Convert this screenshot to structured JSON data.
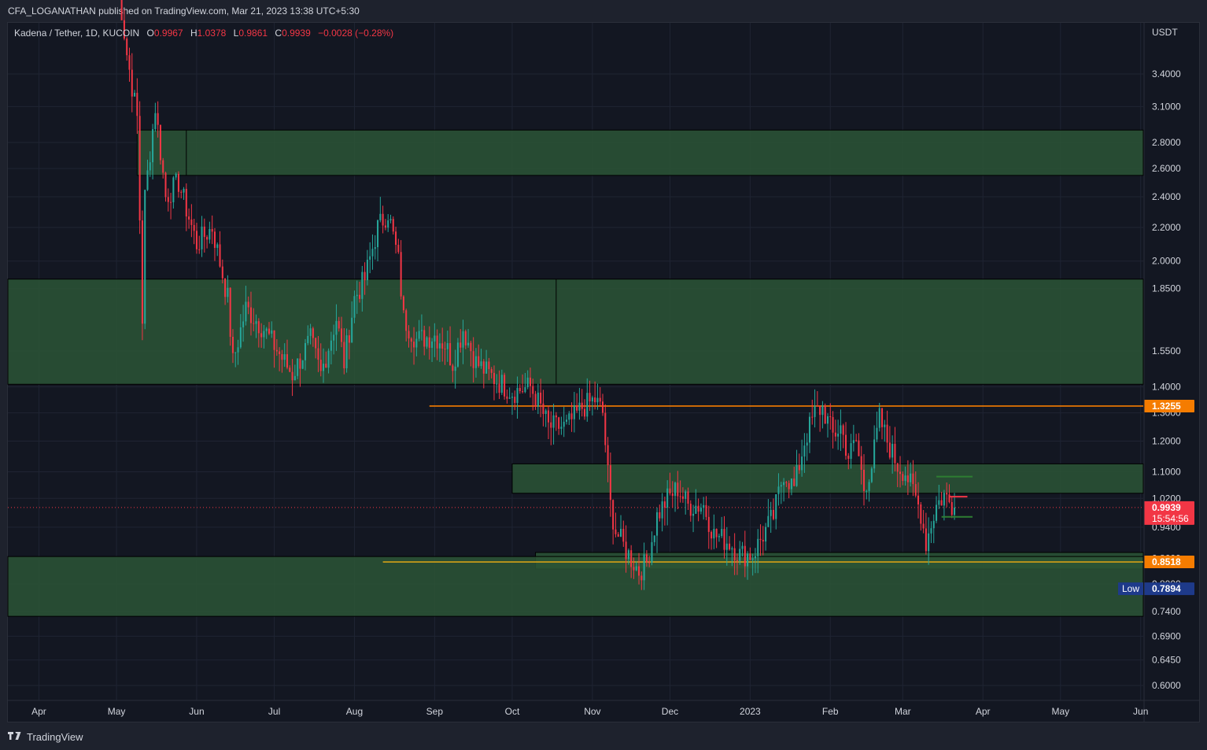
{
  "header": {
    "published_text": "CFA_LOGANATHAN published on TradingView.com, Mar 21, 2023 13:38 UTC+5:30"
  },
  "legend": {
    "symbol": "Kadena / Tether, 1D, KUCOIN",
    "open_label": "O",
    "open": "0.9967",
    "high_label": "H",
    "high": "1.0378",
    "low_label": "L",
    "low": "0.9861",
    "close_label": "C",
    "close": "0.9939",
    "change": "−0.0028 (−0.28%)"
  },
  "footer": {
    "brand": "TradingView"
  },
  "colors": {
    "background": "#131722",
    "up": "#26a69a",
    "down": "#f23645",
    "zone_fill": "#2b5536",
    "orange": "#f57c00",
    "yellow": "#d4a017",
    "low_badge": "#1e3a8a"
  },
  "chart_data": {
    "type": "candlestick",
    "scale": "log",
    "currency": "USDT",
    "y_ticks": [
      "3.4000",
      "3.1000",
      "2.8000",
      "2.6000",
      "2.4000",
      "2.2000",
      "2.0000",
      "1.8500",
      "1.5500",
      "1.4000",
      "1.3000",
      "1.2000",
      "1.1000",
      "1.0200",
      "0.9400",
      "0.8600",
      "0.8000",
      "0.7400",
      "0.6900",
      "0.6450",
      "0.6000"
    ],
    "y_tick_values": [
      3.4,
      3.1,
      2.8,
      2.6,
      2.4,
      2.2,
      2.0,
      1.85,
      1.55,
      1.4,
      1.3,
      1.2,
      1.1,
      1.02,
      0.94,
      0.86,
      0.8,
      0.74,
      0.69,
      0.645,
      0.6
    ],
    "x_ticks": [
      "Apr",
      "May",
      "Jun",
      "Jul",
      "Aug",
      "Sep",
      "Oct",
      "Nov",
      "Dec",
      "2023",
      "Feb",
      "Mar",
      "Apr",
      "May",
      "Jun"
    ],
    "x_tick_dates": [
      "2022-04-01",
      "2022-05-01",
      "2022-06-01",
      "2022-07-01",
      "2022-08-01",
      "2022-09-01",
      "2022-10-01",
      "2022-11-01",
      "2022-12-01",
      "2023-01-01",
      "2023-02-01",
      "2023-03-01",
      "2023-04-01",
      "2023-05-01",
      "2023-06-01"
    ],
    "x_range": [
      "2022-03-20",
      "2023-06-02"
    ],
    "anchors": [
      [
        "2022-05-01",
        4.6
      ],
      [
        "2022-05-05",
        3.6
      ],
      [
        "2022-05-09",
        3.0
      ],
      [
        "2022-05-11",
        1.7
      ],
      [
        "2022-05-12",
        2.4
      ],
      [
        "2022-05-16",
        3.1
      ],
      [
        "2022-05-20",
        2.4
      ],
      [
        "2022-05-25",
        2.5
      ],
      [
        "2022-06-01",
        2.1
      ],
      [
        "2022-06-07",
        2.2
      ],
      [
        "2022-06-13",
        1.8
      ],
      [
        "2022-06-15",
        1.5
      ],
      [
        "2022-06-20",
        1.75
      ],
      [
        "2022-06-27",
        1.65
      ],
      [
        "2022-07-05",
        1.5
      ],
      [
        "2022-07-08",
        1.45
      ],
      [
        "2022-07-15",
        1.6
      ],
      [
        "2022-07-19",
        1.45
      ],
      [
        "2022-07-25",
        1.7
      ],
      [
        "2022-07-28",
        1.5
      ],
      [
        "2022-08-01",
        1.8
      ],
      [
        "2022-08-05",
        1.9
      ],
      [
        "2022-08-10",
        2.2
      ],
      [
        "2022-08-14",
        2.3
      ],
      [
        "2022-08-18",
        2.0
      ],
      [
        "2022-08-20",
        1.7
      ],
      [
        "2022-08-25",
        1.6
      ],
      [
        "2022-09-01",
        1.62
      ],
      [
        "2022-09-05",
        1.58
      ],
      [
        "2022-09-08",
        1.5
      ],
      [
        "2022-09-12",
        1.65
      ],
      [
        "2022-09-17",
        1.5
      ],
      [
        "2022-09-22",
        1.45
      ],
      [
        "2022-10-01",
        1.38
      ],
      [
        "2022-10-08",
        1.4
      ],
      [
        "2022-10-12",
        1.32
      ],
      [
        "2022-10-15",
        1.25
      ],
      [
        "2022-10-22",
        1.25
      ],
      [
        "2022-10-28",
        1.32
      ],
      [
        "2022-11-02",
        1.35
      ],
      [
        "2022-11-05",
        1.3
      ],
      [
        "2022-11-08",
        1.0
      ],
      [
        "2022-11-10",
        0.93
      ],
      [
        "2022-11-14",
        0.88
      ],
      [
        "2022-11-19",
        0.83
      ],
      [
        "2022-11-22",
        0.85
      ],
      [
        "2022-11-26",
        0.97
      ],
      [
        "2022-11-30",
        1.02
      ],
      [
        "2022-12-04",
        1.05
      ],
      [
        "2022-12-08",
        1.0
      ],
      [
        "2022-12-14",
        1.0
      ],
      [
        "2022-12-18",
        0.92
      ],
      [
        "2022-12-24",
        0.9
      ],
      [
        "2022-12-28",
        0.87
      ],
      [
        "2023-01-02",
        0.87
      ],
      [
        "2023-01-06",
        0.92
      ],
      [
        "2023-01-10",
        0.97
      ],
      [
        "2023-01-14",
        1.1
      ],
      [
        "2023-01-18",
        1.05
      ],
      [
        "2023-01-22",
        1.2
      ],
      [
        "2023-01-26",
        1.3
      ],
      [
        "2023-01-29",
        1.32
      ],
      [
        "2023-02-02",
        1.22
      ],
      [
        "2023-02-05",
        1.25
      ],
      [
        "2023-02-08",
        1.15
      ],
      [
        "2023-02-11",
        1.2
      ],
      [
        "2023-02-14",
        1.05
      ],
      [
        "2023-02-17",
        1.12
      ],
      [
        "2023-02-20",
        1.28
      ],
      [
        "2023-02-23",
        1.2
      ],
      [
        "2023-02-27",
        1.12
      ],
      [
        "2023-03-02",
        1.1
      ],
      [
        "2023-03-06",
        1.02
      ],
      [
        "2023-03-08",
        0.98
      ],
      [
        "2023-03-10",
        0.9
      ],
      [
        "2023-03-12",
        0.95
      ],
      [
        "2023-03-14",
        1.0
      ],
      [
        "2023-03-17",
        1.03
      ],
      [
        "2023-03-19",
        1.01
      ],
      [
        "2023-03-21",
        0.9939
      ]
    ],
    "zones": [
      {
        "top": 2.9,
        "bottom": 2.55,
        "from": "2022-05-09",
        "to": "2023-06-02"
      },
      {
        "top": 1.9,
        "bottom": 1.41,
        "from": "2022-03-20",
        "to": "2023-06-02"
      },
      {
        "top": 1.125,
        "bottom": 1.035,
        "from": "2022-10-01",
        "to": "2023-06-02"
      },
      {
        "top": 0.875,
        "bottom": 0.835,
        "from": "2022-10-10",
        "to": "2023-06-02"
      },
      {
        "top": 0.865,
        "bottom": 0.73,
        "from": "2022-03-20",
        "to": "2023-06-02"
      }
    ],
    "lines": [
      {
        "value": 1.3255,
        "from": "2022-08-30",
        "color": "#f57c00"
      },
      {
        "value": 0.8518,
        "from": "2022-08-12",
        "color": "#d4a017"
      }
    ],
    "markers": [
      {
        "kind": "green",
        "value": 1.085,
        "from": "2023-03-14",
        "to": "2023-03-28"
      },
      {
        "kind": "green",
        "value": 0.968,
        "from": "2023-03-16",
        "to": "2023-03-28"
      },
      {
        "kind": "red",
        "value": 1.025,
        "from": "2023-03-19",
        "to": "2023-03-26"
      }
    ],
    "price_labels": [
      {
        "text": "1.3255",
        "value": 1.3255,
        "color": "#f57c00"
      },
      {
        "text": "0.8518",
        "value": 0.8518,
        "color": "#f57c00"
      },
      {
        "text": "0.9939",
        "value": 0.9939,
        "color": "#f23645",
        "countdown": "15:54:56"
      },
      {
        "text": "0.7894",
        "value": 0.7894,
        "color": "#1e3a8a",
        "badge": "Low"
      }
    ],
    "last_price": 0.9939,
    "low": 0.7894
  }
}
